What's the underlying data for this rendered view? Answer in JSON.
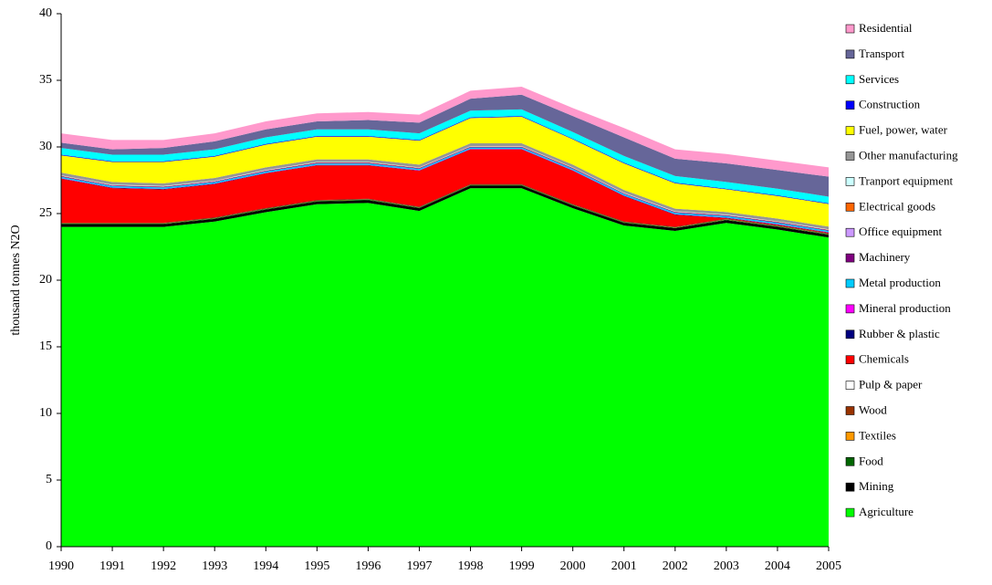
{
  "chart_data": {
    "type": "stacked-area",
    "y_label": "thousand tonnes N2O",
    "categories": [
      "1990",
      "1991",
      "1992",
      "1993",
      "1994",
      "1995",
      "1996",
      "1997",
      "1998",
      "1999",
      "2000",
      "2001",
      "2002",
      "2003",
      "2004",
      "2005"
    ],
    "ylim": [
      0,
      40
    ],
    "yticks": [
      0,
      5,
      10,
      15,
      20,
      25,
      30,
      35,
      40
    ],
    "series": [
      {
        "name": "Agriculture",
        "color": "#00ff00",
        "values": [
          24.0,
          24.0,
          24.0,
          24.4,
          25.1,
          25.7,
          25.8,
          25.2,
          26.9,
          26.9,
          25.4,
          24.1,
          23.7,
          24.3,
          23.8,
          23.2
        ]
      },
      {
        "name": "Mining",
        "color": "#000000",
        "values": [
          0.2,
          0.2,
          0.2,
          0.2,
          0.2,
          0.2,
          0.2,
          0.2,
          0.2,
          0.2,
          0.2,
          0.2,
          0.2,
          0.2,
          0.2,
          0.2
        ]
      },
      {
        "name": "Food",
        "color": "#006600",
        "values": [
          0.05,
          0.05,
          0.05,
          0.05,
          0.05,
          0.05,
          0.05,
          0.05,
          0.05,
          0.05,
          0.05,
          0.05,
          0.05,
          0.05,
          0.05,
          0.05
        ]
      },
      {
        "name": "Textiles",
        "color": "#ff9900",
        "values": [
          0.02,
          0.02,
          0.02,
          0.02,
          0.02,
          0.02,
          0.02,
          0.02,
          0.02,
          0.02,
          0.02,
          0.02,
          0.02,
          0.02,
          0.02,
          0.02
        ]
      },
      {
        "name": "Wood",
        "color": "#993300",
        "values": [
          0.02,
          0.02,
          0.02,
          0.02,
          0.02,
          0.02,
          0.02,
          0.02,
          0.02,
          0.02,
          0.02,
          0.02,
          0.02,
          0.02,
          0.02,
          0.02
        ]
      },
      {
        "name": "Pulp & paper",
        "color": "#ffffff",
        "values": [
          0.02,
          0.02,
          0.02,
          0.02,
          0.02,
          0.02,
          0.02,
          0.02,
          0.02,
          0.02,
          0.02,
          0.02,
          0.02,
          0.02,
          0.02,
          0.02
        ]
      },
      {
        "name": "Chemicals",
        "color": "#ff0000",
        "values": [
          3.3,
          2.6,
          2.5,
          2.5,
          2.6,
          2.6,
          2.5,
          2.7,
          2.6,
          2.6,
          2.5,
          1.9,
          0.9,
          0.05,
          0.05,
          0.05
        ]
      },
      {
        "name": "Rubber & plastic",
        "color": "#000080",
        "values": [
          0.03,
          0.03,
          0.03,
          0.03,
          0.03,
          0.03,
          0.03,
          0.03,
          0.03,
          0.03,
          0.03,
          0.03,
          0.03,
          0.03,
          0.03,
          0.03
        ]
      },
      {
        "name": "Mineral production",
        "color": "#ff00ff",
        "values": [
          0.02,
          0.02,
          0.02,
          0.02,
          0.02,
          0.02,
          0.02,
          0.02,
          0.02,
          0.02,
          0.02,
          0.02,
          0.02,
          0.02,
          0.02,
          0.02
        ]
      },
      {
        "name": "Metal production",
        "color": "#00ccff",
        "values": [
          0.1,
          0.1,
          0.1,
          0.1,
          0.1,
          0.1,
          0.1,
          0.1,
          0.1,
          0.1,
          0.1,
          0.1,
          0.1,
          0.1,
          0.1,
          0.1
        ]
      },
      {
        "name": "Machinery",
        "color": "#800080",
        "values": [
          0.05,
          0.05,
          0.05,
          0.05,
          0.05,
          0.05,
          0.05,
          0.05,
          0.05,
          0.05,
          0.05,
          0.05,
          0.05,
          0.05,
          0.05,
          0.05
        ]
      },
      {
        "name": "Office equipment",
        "color": "#cc99ff",
        "values": [
          0.01,
          0.01,
          0.01,
          0.01,
          0.01,
          0.01,
          0.01,
          0.01,
          0.01,
          0.01,
          0.01,
          0.01,
          0.01,
          0.01,
          0.01,
          0.01
        ]
      },
      {
        "name": "Electrical goods",
        "color": "#ff6600",
        "values": [
          0.02,
          0.02,
          0.02,
          0.02,
          0.02,
          0.02,
          0.02,
          0.02,
          0.02,
          0.02,
          0.02,
          0.02,
          0.02,
          0.02,
          0.02,
          0.02
        ]
      },
      {
        "name": "Tranport equipment",
        "color": "#ccffff",
        "values": [
          0.03,
          0.03,
          0.03,
          0.03,
          0.03,
          0.03,
          0.03,
          0.03,
          0.03,
          0.03,
          0.03,
          0.03,
          0.03,
          0.03,
          0.03,
          0.03
        ]
      },
      {
        "name": "Other manufacturing",
        "color": "#969696",
        "values": [
          0.2,
          0.2,
          0.2,
          0.2,
          0.2,
          0.2,
          0.2,
          0.2,
          0.2,
          0.2,
          0.2,
          0.2,
          0.2,
          0.2,
          0.2,
          0.2
        ]
      },
      {
        "name": "Fuel, power, water",
        "color": "#ffff00",
        "values": [
          1.3,
          1.5,
          1.6,
          1.6,
          1.7,
          1.7,
          1.7,
          1.8,
          1.9,
          2.0,
          1.9,
          2.0,
          1.9,
          1.7,
          1.7,
          1.7
        ]
      },
      {
        "name": "Construction",
        "color": "#0000ff",
        "values": [
          0.05,
          0.05,
          0.05,
          0.05,
          0.05,
          0.05,
          0.05,
          0.05,
          0.05,
          0.05,
          0.05,
          0.05,
          0.05,
          0.05,
          0.05,
          0.05
        ]
      },
      {
        "name": "Services",
        "color": "#00ffff",
        "values": [
          0.5,
          0.5,
          0.5,
          0.5,
          0.5,
          0.5,
          0.5,
          0.5,
          0.5,
          0.5,
          0.5,
          0.5,
          0.5,
          0.5,
          0.5,
          0.5
        ]
      },
      {
        "name": "Transport",
        "color": "#666699",
        "values": [
          0.4,
          0.4,
          0.5,
          0.6,
          0.6,
          0.6,
          0.7,
          0.8,
          0.9,
          1.1,
          1.2,
          1.4,
          1.3,
          1.4,
          1.4,
          1.5
        ]
      },
      {
        "name": "Residential",
        "color": "#ff99cc",
        "values": [
          0.7,
          0.7,
          0.6,
          0.6,
          0.6,
          0.6,
          0.6,
          0.6,
          0.6,
          0.6,
          0.6,
          0.7,
          0.7,
          0.7,
          0.7,
          0.7
        ]
      }
    ]
  }
}
